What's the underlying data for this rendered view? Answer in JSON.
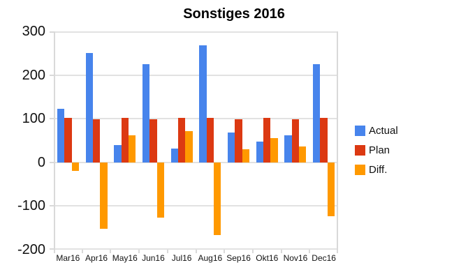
{
  "chart_data": {
    "type": "bar",
    "title": "Sonstiges 2016",
    "categories": [
      "Mar16",
      "Apr16",
      "May16",
      "Jun16",
      "Jul16",
      "Aug16",
      "Sep16",
      "Okt16",
      "Nov16",
      "Dec16"
    ],
    "series": [
      {
        "name": "Actual",
        "color": "#4784ec",
        "values": [
          122,
          250,
          40,
          225,
          31,
          268,
          68,
          47,
          62,
          225
        ]
      },
      {
        "name": "Plan",
        "color": "#dc3912",
        "values": [
          102,
          98,
          102,
          98,
          102,
          102,
          98,
          102,
          98,
          102
        ]
      },
      {
        "name": "Diff.",
        "color": "#ff9900",
        "values": [
          -20,
          -152,
          62,
          -127,
          71,
          -166,
          30,
          55,
          36,
          -123
        ]
      }
    ],
    "ylim": [
      -200,
      300
    ],
    "ytick_step": 100,
    "yticks": [
      300,
      200,
      100,
      0,
      -100,
      -200
    ],
    "grid": true,
    "legend_position": "right",
    "colors": {
      "background": "#ffffff",
      "grid": "#e2e2e2",
      "axis": "#d9d9d9",
      "text": "#111111"
    }
  }
}
